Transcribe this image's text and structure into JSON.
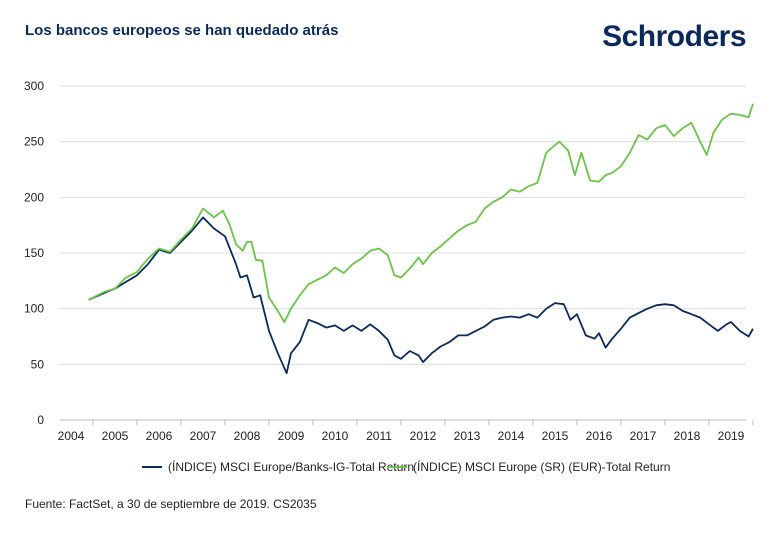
{
  "header": {
    "title": "Los bancos europeos se han quedado atrás",
    "logo": "Schroders"
  },
  "source": "Fuente: FactSet, a 30 de septiembre de 2019. CS2035",
  "chart_data": {
    "type": "line",
    "title": "Los bancos europeos se han quedado atrás",
    "xlabel": "",
    "ylabel": "",
    "xlim": [
      2003.75,
      2019.25
    ],
    "ylim": [
      0,
      300
    ],
    "yticks": [
      0,
      50,
      100,
      150,
      200,
      250,
      300
    ],
    "xticks": [
      2004,
      2005,
      2006,
      2007,
      2008,
      2009,
      2010,
      2011,
      2012,
      2013,
      2014,
      2015,
      2016,
      2017,
      2018,
      2019
    ],
    "grid": "horizontal",
    "legend": "bottom",
    "series": [
      {
        "name": "(ÍNDICE) MSCI Europe/Banks-IG-Total Return",
        "color": "#0b2a5b",
        "x": [
          2004.4,
          2004.75,
          2005.0,
          2005.25,
          2005.5,
          2005.75,
          2006.0,
          2006.25,
          2006.5,
          2006.75,
          2007.0,
          2007.25,
          2007.5,
          2007.75,
          2007.85,
          2008.0,
          2008.15,
          2008.3,
          2008.5,
          2008.7,
          2008.9,
          2009.0,
          2009.2,
          2009.4,
          2009.6,
          2009.8,
          2010.0,
          2010.2,
          2010.4,
          2010.6,
          2010.8,
          2011.0,
          2011.2,
          2011.35,
          2011.5,
          2011.7,
          2011.9,
          2012.0,
          2012.2,
          2012.4,
          2012.6,
          2012.8,
          2013.0,
          2013.2,
          2013.4,
          2013.6,
          2013.8,
          2014.0,
          2014.2,
          2014.4,
          2014.6,
          2014.8,
          2015.0,
          2015.2,
          2015.35,
          2015.5,
          2015.7,
          2015.9,
          2016.0,
          2016.15,
          2016.3,
          2016.5,
          2016.7,
          2016.9,
          2017.1,
          2017.3,
          2017.5,
          2017.7,
          2017.9,
          2018.1,
          2018.3,
          2018.5,
          2018.7,
          2018.9,
          2019.0,
          2019.2,
          2019.4,
          2019.5
        ],
        "values": [
          108,
          114,
          118,
          124,
          130,
          140,
          153,
          150,
          160,
          170,
          182,
          172,
          165,
          140,
          128,
          130,
          110,
          112,
          80,
          60,
          42,
          60,
          70,
          90,
          87,
          83,
          85,
          80,
          85,
          80,
          86,
          80,
          72,
          58,
          55,
          62,
          58,
          52,
          60,
          66,
          70,
          76,
          76,
          80,
          84,
          90,
          92,
          93,
          92,
          95,
          92,
          100,
          105,
          104,
          90,
          95,
          76,
          73,
          78,
          65,
          73,
          82,
          92,
          96,
          100,
          103,
          104,
          103,
          98,
          95,
          92,
          86,
          80,
          86,
          88,
          80,
          75,
          82
        ]
      },
      {
        "name": "(ÍNDICE) MSCI Europe (SR) (EUR)-Total Return",
        "color": "#6cc24a",
        "x": [
          2004.4,
          2004.75,
          2005.0,
          2005.25,
          2005.5,
          2005.75,
          2006.0,
          2006.25,
          2006.5,
          2006.75,
          2007.0,
          2007.25,
          2007.45,
          2007.6,
          2007.75,
          2007.9,
          2008.0,
          2008.1,
          2008.2,
          2008.35,
          2008.5,
          2008.7,
          2008.85,
          2009.0,
          2009.2,
          2009.4,
          2009.6,
          2009.8,
          2010.0,
          2010.2,
          2010.4,
          2010.6,
          2010.8,
          2011.0,
          2011.2,
          2011.35,
          2011.5,
          2011.7,
          2011.9,
          2012.0,
          2012.2,
          2012.4,
          2012.6,
          2012.8,
          2013.0,
          2013.2,
          2013.4,
          2013.6,
          2013.8,
          2014.0,
          2014.2,
          2014.4,
          2014.6,
          2014.8,
          2015.0,
          2015.1,
          2015.3,
          2015.45,
          2015.6,
          2015.8,
          2016.0,
          2016.15,
          2016.3,
          2016.5,
          2016.7,
          2016.9,
          2017.1,
          2017.3,
          2017.5,
          2017.7,
          2017.9,
          2018.1,
          2018.3,
          2018.45,
          2018.6,
          2018.8,
          2019.0,
          2019.2,
          2019.4,
          2019.5
        ],
        "values": [
          108,
          115,
          118,
          128,
          133,
          145,
          154,
          151,
          162,
          172,
          190,
          182,
          188,
          176,
          158,
          152,
          160,
          160,
          144,
          143,
          110,
          98,
          88,
          100,
          112,
          122,
          126,
          130,
          137,
          132,
          140,
          145,
          152,
          154,
          148,
          130,
          128,
          136,
          146,
          140,
          150,
          156,
          163,
          170,
          175,
          178,
          190,
          196,
          200,
          207,
          205,
          210,
          213,
          240,
          247,
          250,
          242,
          220,
          240,
          215,
          214,
          220,
          222,
          228,
          240,
          256,
          252,
          262,
          265,
          255,
          262,
          267,
          250,
          238,
          258,
          270,
          275,
          274,
          272,
          284
        ]
      }
    ]
  }
}
